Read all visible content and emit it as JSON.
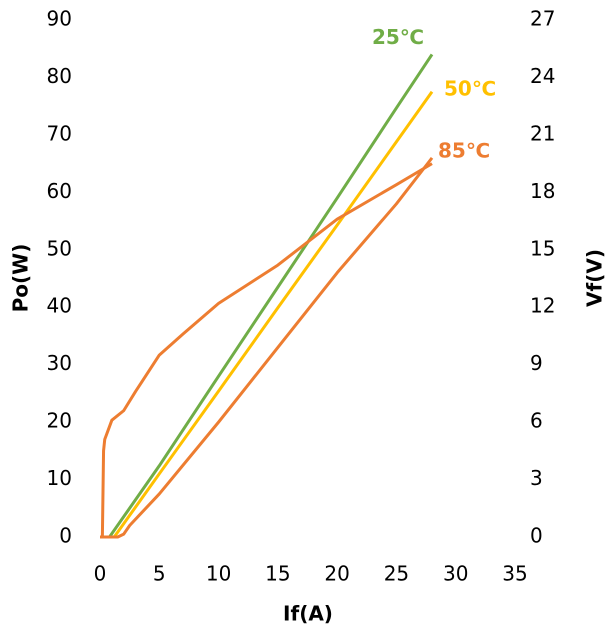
{
  "chart_data": {
    "type": "line",
    "xlabel": "If(A)",
    "ylabel": "Po(W)",
    "y2label": "Vf(V)",
    "xlim": [
      0,
      35
    ],
    "xticks": [
      0,
      5,
      10,
      15,
      20,
      25,
      30,
      35
    ],
    "ylim": [
      0,
      90
    ],
    "yticks": [
      0,
      10,
      20,
      30,
      40,
      50,
      60,
      70,
      80,
      90
    ],
    "y2lim": [
      0,
      27
    ],
    "y2ticks": [
      0,
      3,
      6,
      9,
      12,
      15,
      18,
      21,
      24,
      27
    ],
    "series": [
      {
        "name": "25℃",
        "color": "#70ad47",
        "x": [
          0,
          0.8,
          5,
          10,
          15,
          20,
          25,
          28
        ],
        "values": [
          0,
          0,
          12.4,
          28,
          43.5,
          59,
          74.7,
          84
        ]
      },
      {
        "name": "50℃",
        "color": "#ffc000",
        "x": [
          0,
          1.2,
          5,
          10,
          15,
          20,
          25,
          28
        ],
        "values": [
          0,
          0,
          11,
          25.4,
          39.9,
          54.3,
          68.8,
          77.5
        ]
      },
      {
        "name": "85℃",
        "color": "#ed7d31",
        "x": [
          0,
          1.5,
          2,
          2.5,
          5,
          10,
          15,
          20,
          25,
          28
        ],
        "values": [
          0,
          0,
          0.5,
          2,
          7.5,
          20,
          33,
          46,
          58,
          66
        ]
      },
      {
        "color": "#ed7d31",
        "axis": "y2",
        "x": [
          0,
          0.2,
          0.3,
          0.4,
          1,
          2,
          3,
          5,
          7,
          10,
          15,
          20,
          25,
          28
        ],
        "values": [
          0,
          0,
          4.5,
          5.1,
          6.1,
          6.6,
          7.6,
          9.5,
          10.6,
          12.2,
          14.2,
          16.6,
          18.4,
          19.5
        ]
      }
    ]
  }
}
